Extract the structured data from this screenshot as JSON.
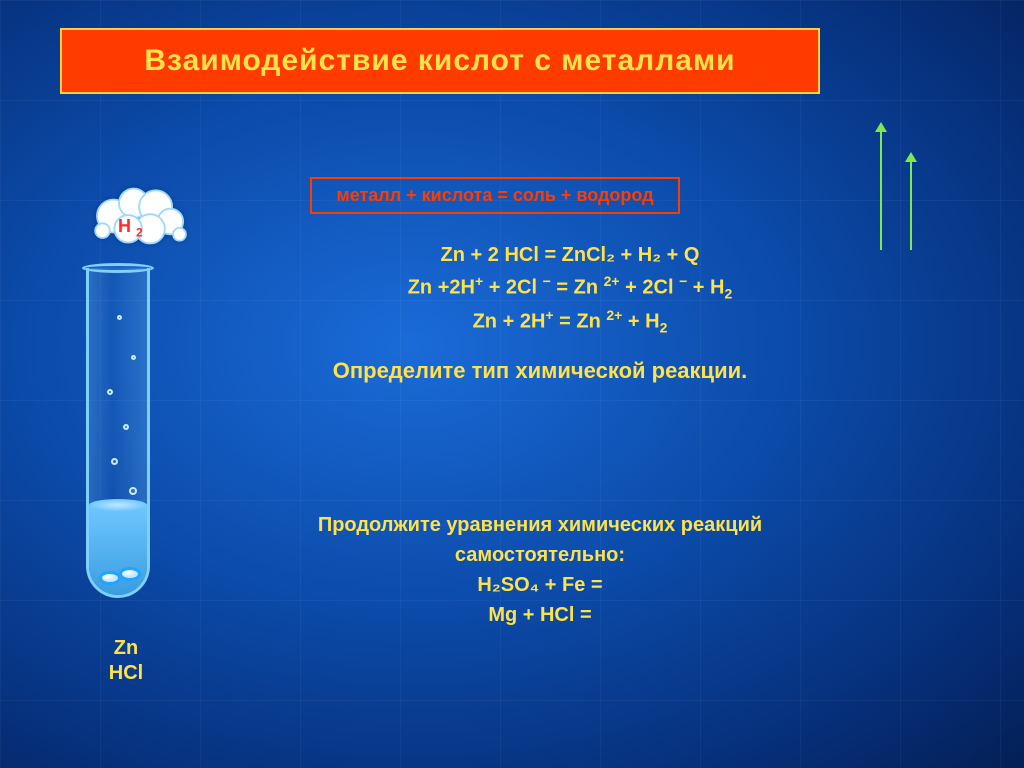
{
  "colors": {
    "bg_center": "#1a6bd8",
    "bg_edge": "#041f55",
    "title_bg": "#ff3b00",
    "title_border": "#ffd040",
    "title_text": "#ffe14a",
    "accent_text": "#ffe14a",
    "formula_border": "#ff3b00",
    "formula_text": "#ff3b00",
    "arrow": "#7ee84c",
    "tube_outline": "#7fd0ff",
    "h2_label": "#ff2a2a"
  },
  "title": "Взаимодействие  кислот с металлами",
  "general_formula": "металл  + кислота = соль + водород",
  "equations": {
    "line1": "Zn + 2 HCl  =  ZnCl₂ + H₂ + Q",
    "line2_html": "Zn +2H<sup>+</sup> + 2Cl <sup>−</sup> = Zn <sup>2+</sup> + 2Cl <sup>−</sup> + H<sub>2</sub>",
    "line3_html": "Zn +  2H<sup>+</sup>  =  Zn <sup>2+</sup> + H<sub>2</sub>"
  },
  "task1": "Определите тип химической реакции.",
  "task2": {
    "intro": "Продолжите уравнения химических реакций самостоятельно:",
    "eq1": "H₂SO₄ + Fe =",
    "eq2": "Mg +   HCl  ="
  },
  "illustration": {
    "gas_label_html": "H <sub>2</sub>",
    "tube_label_line1": "Zn",
    "tube_label_line2": "HCl"
  },
  "typography": {
    "title_fontsize": 30,
    "body_fontsize": 20,
    "task_fontsize": 22
  }
}
